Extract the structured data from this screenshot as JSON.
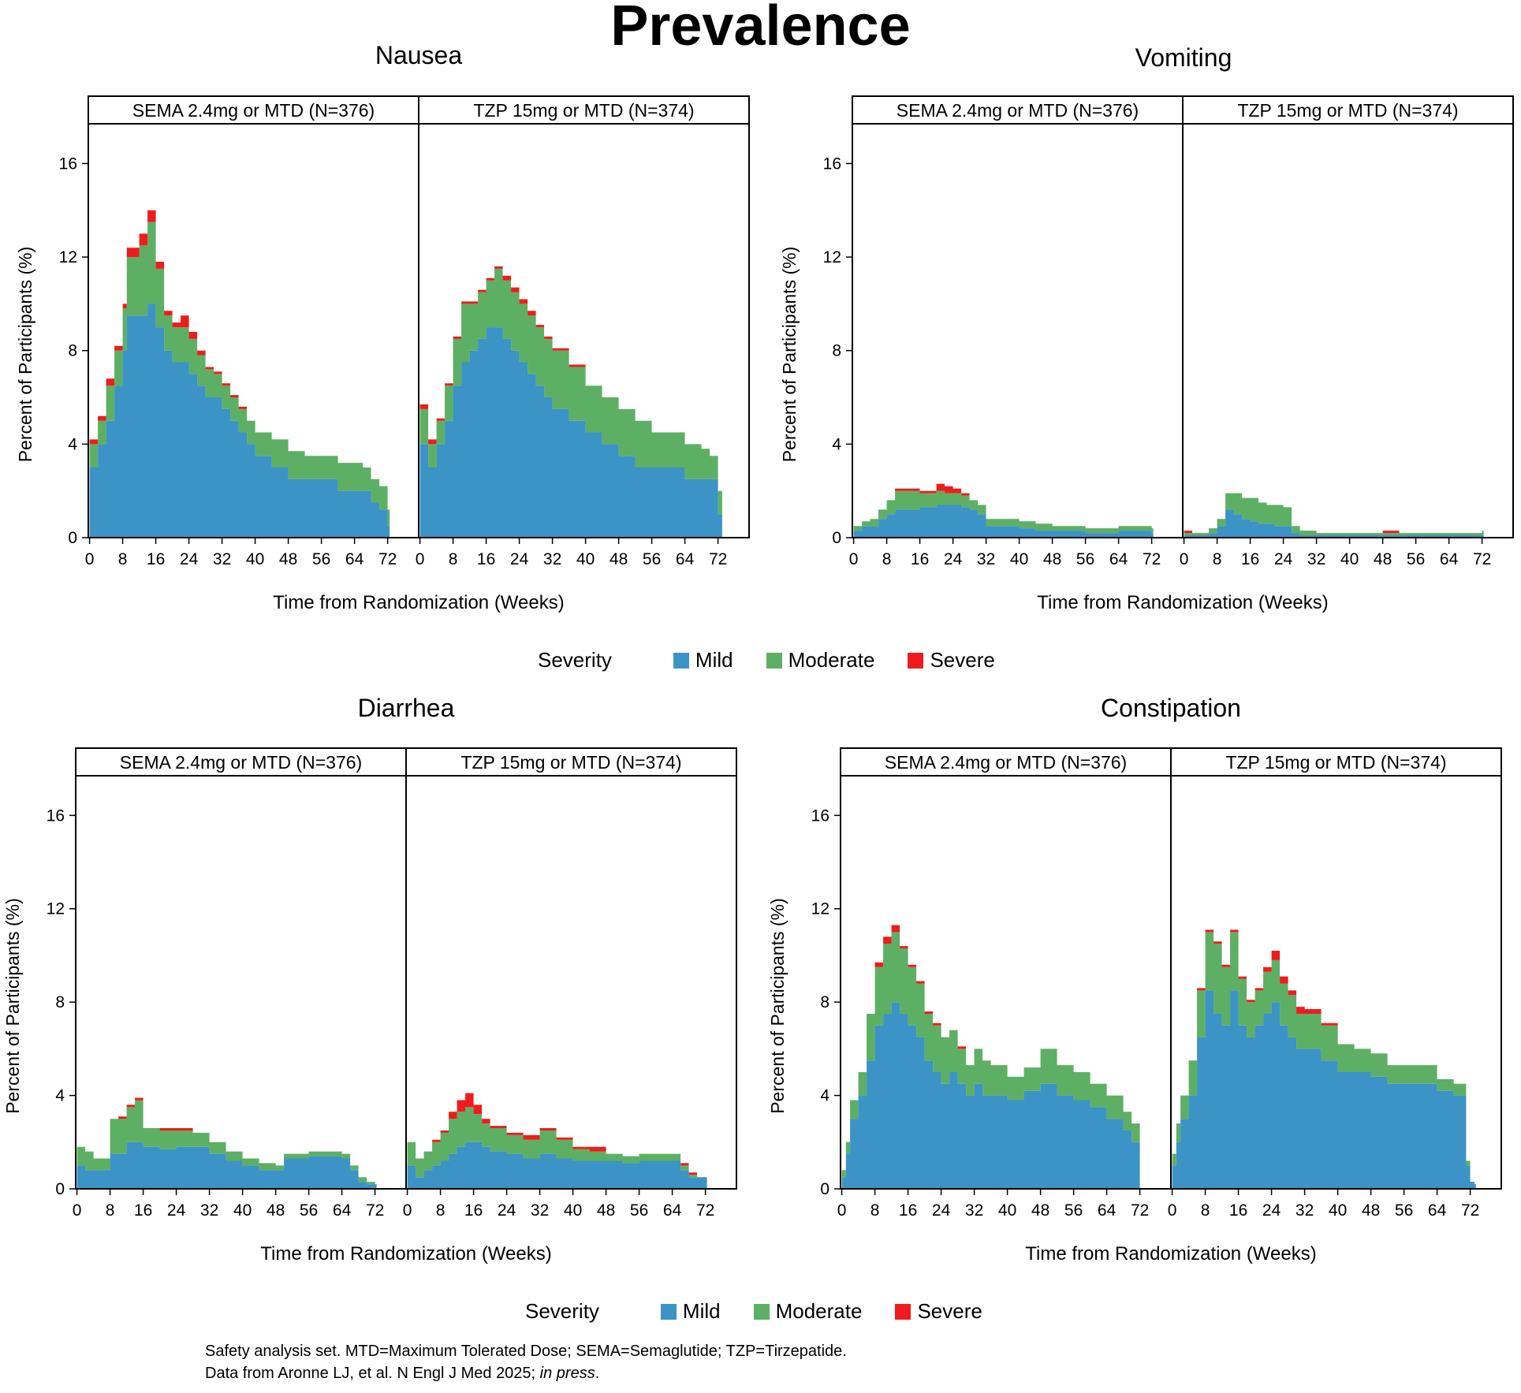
{
  "title": "Prevalence",
  "legend": {
    "title": "Severity",
    "items": [
      {
        "label": "Mild",
        "color": "#3C93C6"
      },
      {
        "label": "Moderate",
        "color": "#5DAF64"
      },
      {
        "label": "Severe",
        "color": "#EE1C1C"
      }
    ]
  },
  "footnote": {
    "line1": "Safety analysis set. MTD=Maximum Tolerated Dose; SEMA=Semaglutide; TZP=Tirzepatide.",
    "line2_prefix": "Data from Aronne LJ, et al. N Engl J Med 2025; ",
    "line2_italic": "in press",
    "line2_suffix": "."
  },
  "chart_data": [
    {
      "type": "area",
      "title": "Nausea",
      "xlabel": "Time from Randomization (Weeks)",
      "ylabel": "Percent of Participants (%)",
      "xlim": [
        0,
        76
      ],
      "ylim": [
        0,
        16
      ],
      "xticks": [
        0,
        8,
        16,
        24,
        32,
        40,
        48,
        56,
        64,
        72
      ],
      "yticks": [
        0,
        4,
        8,
        12,
        16
      ],
      "facets": [
        {
          "label": "SEMA 2.4mg or MTD (N=376)",
          "x": [
            0,
            2,
            4,
            6,
            8,
            9,
            10,
            12,
            14,
            16,
            18,
            20,
            22,
            24,
            26,
            28,
            30,
            32,
            34,
            36,
            38,
            40,
            44,
            48,
            52,
            56,
            60,
            64,
            66,
            68,
            70,
            72,
            72.5
          ],
          "mild": [
            3.0,
            4.0,
            5.0,
            6.5,
            8.0,
            9.5,
            9.5,
            9.5,
            10.0,
            9.0,
            8.0,
            7.5,
            7.5,
            7.0,
            6.5,
            6.0,
            6.0,
            5.5,
            5.0,
            4.5,
            4.0,
            3.5,
            3.0,
            2.5,
            2.5,
            2.5,
            2.0,
            2.0,
            2.0,
            1.5,
            1.2,
            0.5,
            0.0
          ],
          "moderate": [
            1.0,
            1.0,
            1.5,
            1.5,
            1.8,
            2.5,
            2.5,
            3.0,
            3.5,
            2.5,
            1.5,
            1.5,
            1.5,
            1.5,
            1.3,
            1.2,
            1.0,
            1.0,
            1.0,
            1.0,
            1.0,
            1.0,
            1.2,
            1.2,
            1.0,
            1.0,
            1.2,
            1.2,
            1.0,
            1.0,
            1.0,
            0.7,
            0.0
          ],
          "severe": [
            0.2,
            0.2,
            0.3,
            0.2,
            0.2,
            0.4,
            0.4,
            0.5,
            0.5,
            0.3,
            0.2,
            0.2,
            0.5,
            0.3,
            0.2,
            0.1,
            0.1,
            0.1,
            0.1,
            0.1,
            0.0,
            0.0,
            0.0,
            0.0,
            0.0,
            0.0,
            0.0,
            0.0,
            0.0,
            0.0,
            0.0,
            0.0,
            0.0
          ]
        },
        {
          "label": "TZP 15mg or MTD (N=374)",
          "x": [
            0,
            2,
            4,
            6,
            8,
            10,
            12,
            14,
            16,
            18,
            20,
            22,
            24,
            26,
            28,
            30,
            32,
            36,
            40,
            44,
            48,
            52,
            56,
            60,
            64,
            68,
            70,
            72,
            73
          ],
          "mild": [
            4.0,
            3.0,
            4.0,
            5.0,
            6.5,
            7.5,
            8.0,
            8.5,
            9.0,
            9.0,
            8.5,
            8.0,
            7.5,
            7.0,
            6.5,
            6.0,
            5.5,
            5.0,
            4.5,
            4.0,
            3.5,
            3.0,
            3.0,
            3.0,
            2.5,
            2.5,
            2.5,
            1.0,
            0.0
          ],
          "moderate": [
            1.5,
            1.0,
            1.0,
            1.5,
            2.0,
            2.5,
            2.0,
            2.0,
            2.0,
            2.5,
            2.5,
            2.5,
            2.5,
            2.5,
            2.5,
            2.5,
            2.5,
            2.3,
            2.0,
            2.0,
            2.0,
            2.0,
            1.5,
            1.5,
            1.5,
            1.3,
            1.0,
            1.0,
            0.0
          ],
          "severe": [
            0.2,
            0.2,
            0.1,
            0.1,
            0.1,
            0.1,
            0.1,
            0.1,
            0.1,
            0.1,
            0.2,
            0.2,
            0.2,
            0.2,
            0.1,
            0.1,
            0.1,
            0.1,
            0.0,
            0.0,
            0.0,
            0.0,
            0.0,
            0.0,
            0.0,
            0.0,
            0.0,
            0.0,
            0.0
          ]
        }
      ]
    },
    {
      "type": "area",
      "title": "Vomiting",
      "xlabel": "Time from Randomization (Weeks)",
      "ylabel": "Percent of Participants (%)",
      "xlim": [
        0,
        76
      ],
      "ylim": [
        0,
        16
      ],
      "xticks": [
        0,
        8,
        16,
        24,
        32,
        40,
        48,
        56,
        64,
        72
      ],
      "yticks": [
        0,
        4,
        8,
        12,
        16
      ],
      "facets": [
        {
          "label": "SEMA 2.4mg or MTD (N=376)",
          "x": [
            0,
            2,
            4,
            6,
            8,
            10,
            12,
            14,
            16,
            18,
            20,
            22,
            24,
            26,
            28,
            30,
            32,
            36,
            40,
            44,
            48,
            52,
            56,
            60,
            64,
            68,
            72
          ],
          "mild": [
            0.3,
            0.5,
            0.5,
            0.8,
            1.0,
            1.2,
            1.2,
            1.2,
            1.3,
            1.3,
            1.4,
            1.4,
            1.4,
            1.3,
            1.2,
            1.0,
            0.5,
            0.5,
            0.4,
            0.3,
            0.3,
            0.3,
            0.2,
            0.2,
            0.3,
            0.3,
            0.2
          ],
          "moderate": [
            0.2,
            0.2,
            0.3,
            0.4,
            0.6,
            0.8,
            0.8,
            0.8,
            0.6,
            0.6,
            0.6,
            0.5,
            0.5,
            0.5,
            0.4,
            0.4,
            0.3,
            0.3,
            0.3,
            0.3,
            0.2,
            0.2,
            0.2,
            0.2,
            0.2,
            0.2,
            0.2
          ],
          "severe": [
            0.0,
            0.0,
            0.0,
            0.0,
            0.0,
            0.1,
            0.1,
            0.1,
            0.1,
            0.1,
            0.3,
            0.3,
            0.2,
            0.1,
            0.0,
            0.0,
            0.0,
            0.0,
            0.0,
            0.0,
            0.0,
            0.0,
            0.0,
            0.0,
            0.0,
            0.0,
            0.0
          ]
        },
        {
          "label": "TZP 15mg or MTD (N=374)",
          "x": [
            0,
            2,
            4,
            6,
            8,
            10,
            12,
            14,
            16,
            18,
            20,
            22,
            24,
            26,
            28,
            32,
            36,
            40,
            44,
            48,
            52,
            56,
            60,
            64,
            68,
            72
          ],
          "mild": [
            0.1,
            0.1,
            0.1,
            0.2,
            0.5,
            1.2,
            1.0,
            0.8,
            0.7,
            0.6,
            0.6,
            0.5,
            0.5,
            0.2,
            0.1,
            0.1,
            0.1,
            0.1,
            0.1,
            0.1,
            0.1,
            0.1,
            0.1,
            0.1,
            0.1,
            0.1
          ],
          "moderate": [
            0.1,
            0.1,
            0.1,
            0.2,
            0.3,
            0.7,
            0.9,
            0.9,
            1.0,
            0.9,
            0.8,
            0.9,
            0.8,
            0.3,
            0.2,
            0.1,
            0.1,
            0.1,
            0.1,
            0.1,
            0.1,
            0.1,
            0.1,
            0.1,
            0.1,
            0.2
          ],
          "severe": [
            0.1,
            0.0,
            0.0,
            0.0,
            0.0,
            0.0,
            0.0,
            0.0,
            0.0,
            0.0,
            0.0,
            0.0,
            0.0,
            0.0,
            0.0,
            0.0,
            0.0,
            0.0,
            0.0,
            0.1,
            0.0,
            0.0,
            0.0,
            0.0,
            0.0,
            0.0
          ]
        }
      ]
    },
    {
      "type": "area",
      "title": "Diarrhea",
      "xlabel": "Time from Randomization (Weeks)",
      "ylabel": "Percent of Participants (%)",
      "xlim": [
        0,
        76
      ],
      "ylim": [
        0,
        16
      ],
      "xticks": [
        0,
        8,
        16,
        24,
        32,
        40,
        48,
        56,
        64,
        72
      ],
      "yticks": [
        0,
        4,
        8,
        12,
        16
      ],
      "facets": [
        {
          "label": "SEMA 2.4mg or MTD (N=376)",
          "x": [
            0,
            2,
            4,
            6,
            8,
            10,
            12,
            14,
            16,
            18,
            20,
            24,
            28,
            32,
            36,
            40,
            44,
            48,
            50,
            52,
            56,
            60,
            64,
            66,
            68,
            70,
            72
          ],
          "mild": [
            1.0,
            0.8,
            0.8,
            0.8,
            1.5,
            1.5,
            2.0,
            2.0,
            1.8,
            1.8,
            1.7,
            1.8,
            1.8,
            1.5,
            1.2,
            1.0,
            0.8,
            0.8,
            1.3,
            1.3,
            1.4,
            1.4,
            1.3,
            0.8,
            0.3,
            0.2,
            0.2
          ],
          "moderate": [
            0.8,
            0.8,
            0.5,
            0.5,
            1.5,
            1.5,
            1.5,
            1.8,
            0.8,
            0.8,
            0.8,
            0.7,
            0.6,
            0.5,
            0.4,
            0.3,
            0.3,
            0.2,
            0.2,
            0.2,
            0.2,
            0.2,
            0.2,
            0.2,
            0.2,
            0.1,
            0.0
          ],
          "severe": [
            0.0,
            0.0,
            0.0,
            0.0,
            0.0,
            0.1,
            0.1,
            0.1,
            0.0,
            0.0,
            0.1,
            0.1,
            0.0,
            0.0,
            0.0,
            0.0,
            0.0,
            0.0,
            0.0,
            0.0,
            0.0,
            0.0,
            0.0,
            0.0,
            0.0,
            0.0,
            0.0
          ]
        },
        {
          "label": "TZP 15mg or MTD (N=374)",
          "x": [
            0,
            2,
            4,
            6,
            8,
            10,
            12,
            14,
            16,
            18,
            20,
            24,
            28,
            32,
            36,
            40,
            44,
            48,
            52,
            56,
            60,
            64,
            66,
            68,
            70,
            72
          ],
          "mild": [
            1.0,
            0.5,
            0.8,
            1.0,
            1.2,
            1.5,
            1.8,
            2.0,
            2.0,
            1.8,
            1.6,
            1.5,
            1.3,
            1.5,
            1.3,
            1.2,
            1.2,
            1.2,
            1.1,
            1.2,
            1.2,
            1.2,
            0.8,
            0.5,
            0.5,
            0.5
          ],
          "moderate": [
            1.0,
            0.8,
            0.8,
            1.0,
            1.2,
            1.5,
            1.5,
            1.5,
            1.2,
            1.0,
            1.0,
            0.8,
            0.8,
            1.0,
            0.8,
            0.5,
            0.4,
            0.3,
            0.3,
            0.3,
            0.3,
            0.3,
            0.2,
            0.1,
            0.0,
            0.0
          ],
          "severe": [
            0.0,
            0.0,
            0.0,
            0.1,
            0.1,
            0.3,
            0.5,
            0.6,
            0.4,
            0.2,
            0.1,
            0.1,
            0.2,
            0.1,
            0.1,
            0.1,
            0.2,
            0.0,
            0.0,
            0.0,
            0.0,
            0.0,
            0.1,
            0.1,
            0.0,
            0.0
          ]
        }
      ]
    },
    {
      "type": "area",
      "title": "Constipation",
      "xlabel": "Time from Randomization (Weeks)",
      "ylabel": "Percent of Participants (%)",
      "xlim": [
        0,
        76
      ],
      "ylim": [
        0,
        16
      ],
      "xticks": [
        0,
        8,
        16,
        24,
        32,
        40,
        48,
        56,
        64,
        72
      ],
      "yticks": [
        0,
        4,
        8,
        12,
        16
      ],
      "facets": [
        {
          "label": "SEMA 2.4mg or MTD (N=376)",
          "x": [
            0,
            1,
            2,
            4,
            6,
            8,
            10,
            12,
            14,
            16,
            18,
            20,
            22,
            24,
            26,
            28,
            30,
            32,
            34,
            36,
            40,
            44,
            48,
            52,
            56,
            60,
            64,
            68,
            70,
            72
          ],
          "mild": [
            0.5,
            1.5,
            3.0,
            4.0,
            5.5,
            7.0,
            7.5,
            8.0,
            7.5,
            7.0,
            6.5,
            5.5,
            5.0,
            4.5,
            5.0,
            4.5,
            4.0,
            4.5,
            4.0,
            4.0,
            3.8,
            4.2,
            4.5,
            4.0,
            3.8,
            3.5,
            3.0,
            2.5,
            2.0,
            0.0
          ],
          "moderate": [
            0.3,
            0.5,
            0.8,
            1.0,
            2.0,
            2.5,
            3.0,
            3.0,
            2.8,
            2.5,
            2.3,
            2.0,
            2.0,
            2.0,
            1.8,
            1.5,
            1.3,
            1.5,
            1.5,
            1.3,
            1.0,
            1.0,
            1.5,
            1.3,
            1.2,
            1.0,
            1.0,
            0.8,
            0.8,
            0.0
          ],
          "severe": [
            0.0,
            0.0,
            0.0,
            0.0,
            0.0,
            0.2,
            0.3,
            0.3,
            0.1,
            0.1,
            0.1,
            0.1,
            0.1,
            0.0,
            0.0,
            0.1,
            0.0,
            0.0,
            0.0,
            0.0,
            0.0,
            0.0,
            0.0,
            0.0,
            0.0,
            0.0,
            0.0,
            0.0,
            0.0,
            0.0
          ]
        },
        {
          "label": "TZP 15mg or MTD (N=374)",
          "x": [
            0,
            1,
            2,
            4,
            6,
            8,
            10,
            12,
            14,
            16,
            18,
            20,
            22,
            24,
            26,
            28,
            30,
            32,
            34,
            36,
            40,
            44,
            48,
            52,
            56,
            60,
            64,
            68,
            70,
            71,
            72,
            73
          ],
          "mild": [
            1.0,
            2.0,
            3.0,
            4.0,
            6.5,
            8.5,
            7.5,
            7.0,
            8.5,
            7.0,
            6.5,
            7.0,
            7.5,
            8.0,
            7.0,
            6.5,
            6.0,
            6.0,
            6.0,
            5.5,
            5.0,
            5.0,
            4.8,
            4.5,
            4.5,
            4.5,
            4.2,
            4.0,
            4.0,
            1.0,
            0.3,
            0.2
          ],
          "moderate": [
            0.5,
            0.8,
            1.0,
            1.5,
            2.0,
            2.5,
            3.0,
            2.5,
            2.5,
            2.0,
            1.5,
            1.5,
            1.8,
            1.8,
            1.8,
            1.8,
            1.5,
            1.5,
            1.5,
            1.5,
            1.2,
            1.0,
            1.0,
            0.8,
            0.8,
            0.8,
            0.5,
            0.5,
            0.5,
            0.2,
            0.0,
            0.0
          ],
          "severe": [
            0.0,
            0.0,
            0.0,
            0.0,
            0.1,
            0.1,
            0.1,
            0.1,
            0.1,
            0.1,
            0.1,
            0.1,
            0.2,
            0.4,
            0.3,
            0.2,
            0.3,
            0.2,
            0.2,
            0.1,
            0.0,
            0.0,
            0.0,
            0.0,
            0.0,
            0.0,
            0.0,
            0.0,
            0.0,
            0.0,
            0.0,
            0.0
          ]
        }
      ]
    }
  ]
}
